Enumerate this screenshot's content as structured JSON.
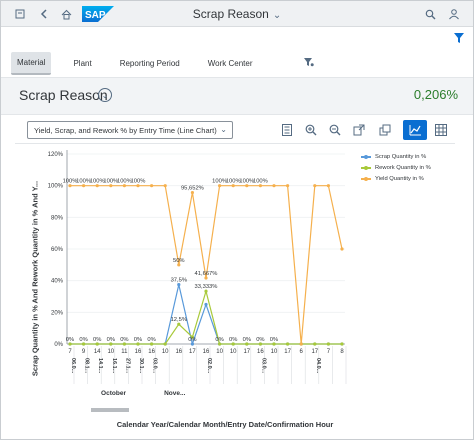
{
  "shell": {
    "title": "Scrap Reason"
  },
  "filters": {
    "tabs": [
      {
        "label": "Material",
        "active": true
      },
      {
        "label": "Plant",
        "active": false
      },
      {
        "label": "Reporting Period",
        "active": false
      },
      {
        "label": "Work Center",
        "active": false
      }
    ]
  },
  "header": {
    "title": "Scrap Reason",
    "kpi": "0,206%"
  },
  "toolbar": {
    "chart_select": "Yield, Scrap, and Rework % by Entry Time (Line Chart)"
  },
  "colors": {
    "scrap": "#5899da",
    "rework": "#a8c93a",
    "yield": "#f5b04d",
    "brand": "#0a6ed1",
    "kpi": "#2b7d2b"
  },
  "chart_data": {
    "type": "line",
    "ylabel": "Scrap Quantity in % And Rework Quantity in % And Y...",
    "xlabel": "Calendar Year/Calendar Month/Entry Date/Confirmation Hour",
    "y_ticks": [
      "0%",
      "20%",
      "40%",
      "60%",
      "80%",
      "100%",
      "120%"
    ],
    "ylim": [
      0,
      120
    ],
    "x_hours": [
      "7",
      "9",
      "14",
      "10",
      "11",
      "16",
      "16",
      "10",
      "16",
      "17",
      "16",
      "10",
      "10",
      "17",
      "16",
      "10",
      "17",
      "6",
      "17",
      "7",
      "8"
    ],
    "x_dates": [
      "06.0...",
      "08.1...",
      "14.1...",
      "16.1...",
      "27.1...",
      "30.1...",
      "03.0...",
      "",
      "",
      "",
      "02.0...",
      "",
      "",
      "",
      "03.0...",
      "",
      "",
      "",
      "04.0...",
      "",
      ""
    ],
    "x_months": [
      {
        "label": "October"
      },
      {
        "label": "Nove..."
      }
    ],
    "legend": [
      "Scrap Quantity in %",
      "Rework Quantity in %",
      "Yield Quantity in %"
    ],
    "series": [
      {
        "name": "Scrap Quantity in %",
        "values": [
          0,
          0,
          0,
          0,
          0,
          0,
          0,
          0,
          37.5,
          0,
          25,
          0,
          0,
          0,
          0,
          0,
          0,
          0,
          0,
          0,
          0
        ]
      },
      {
        "name": "Rework Quantity in %",
        "values": [
          0,
          0,
          0,
          0,
          0,
          0,
          0,
          0,
          12.5,
          4.348,
          33.333,
          0,
          0,
          0,
          0,
          0,
          0,
          0,
          0,
          0,
          0
        ]
      },
      {
        "name": "Yield Quantity in %",
        "values": [
          100,
          100,
          100,
          100,
          100,
          100,
          100,
          100,
          50,
          95.652,
          41.667,
          100,
          100,
          100,
          100,
          100,
          100,
          0,
          100,
          100,
          60
        ]
      }
    ],
    "data_labels": {
      "yield": [
        "100%",
        "100%",
        "100%",
        "100%",
        "100%",
        "100%",
        "",
        "",
        "50%",
        "95,652%",
        "41,667%",
        "100%",
        "100%",
        "100%",
        "100%",
        "",
        "",
        "",
        "",
        "",
        ""
      ],
      "scrap": [
        "0%",
        "0%",
        "0%",
        "0%",
        "0%",
        "0%",
        "0%",
        "",
        "37,5%",
        "0%",
        "",
        "0%",
        "0%",
        "0%",
        "0%",
        "0%",
        "",
        "",
        "",
        "",
        ""
      ],
      "rework": [
        "",
        "",
        "",
        "",
        "",
        "",
        "",
        "",
        "12,5%",
        "",
        "33,333%",
        "",
        "",
        "",
        "",
        "",
        "",
        "",
        "",
        "",
        ""
      ]
    }
  }
}
